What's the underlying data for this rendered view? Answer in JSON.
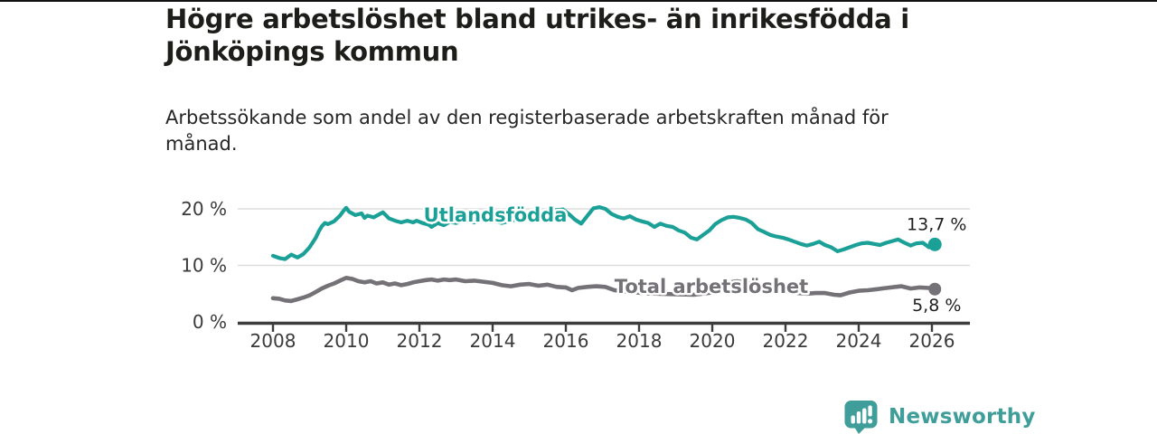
{
  "header": {
    "title": "Högre arbetslöshet bland utrikes- än inrikesfödda i\nJönköpings kommun",
    "subtitle": "Arbetssökande som andel av den registerbaserade arbetskraften månad för\nmånad."
  },
  "colors": {
    "accent_teal": "#1aa096",
    "series_gray": "#747277",
    "axis": "#3c3c3c",
    "gridline": "#dddddd",
    "brand_teal": "#3f9e99"
  },
  "chart_data": {
    "type": "line",
    "title": "Högre arbetslöshet bland utrikes- än inrikesfödda i Jönköpings kommun",
    "subtitle": "Arbetssökande som andel av den registerbaserade arbetskraften månad för månad.",
    "xlabel": "",
    "ylabel": "",
    "x_range": [
      2007.05,
      2027.05
    ],
    "ylim": [
      0,
      21.5
    ],
    "grid": "horizontal",
    "legend_position": "inline-labels",
    "x_axis": {
      "tick_values": [
        2008,
        2010,
        2012,
        2014,
        2016,
        2018,
        2020,
        2022,
        2024,
        2026
      ],
      "tick_labels": [
        "2008",
        "2010",
        "2012",
        "2014",
        "2016",
        "2018",
        "2020",
        "2022",
        "2024",
        "2026"
      ]
    },
    "y_axis": {
      "tick_values": [
        0,
        10,
        20
      ],
      "tick_labels": [
        "0 %",
        "10 %",
        "20 %"
      ],
      "gridline_values": [
        10,
        20
      ]
    },
    "series": [
      {
        "name": "Utlandsfödda",
        "color": "#1aa096",
        "end_value": 13.7,
        "end_value_label": "13,7 %",
        "points": [
          [
            2008.0,
            11.7
          ],
          [
            2008.17,
            11.3
          ],
          [
            2008.33,
            11.1
          ],
          [
            2008.5,
            11.9
          ],
          [
            2008.67,
            11.4
          ],
          [
            2008.83,
            12.0
          ],
          [
            2009.0,
            13.2
          ],
          [
            2009.17,
            14.9
          ],
          [
            2009.25,
            16.0
          ],
          [
            2009.33,
            16.9
          ],
          [
            2009.42,
            17.5
          ],
          [
            2009.5,
            17.3
          ],
          [
            2009.67,
            17.8
          ],
          [
            2009.83,
            18.8
          ],
          [
            2009.92,
            19.6
          ],
          [
            2010.0,
            20.2
          ],
          [
            2010.08,
            19.5
          ],
          [
            2010.25,
            18.9
          ],
          [
            2010.42,
            19.2
          ],
          [
            2010.5,
            18.4
          ],
          [
            2010.58,
            18.8
          ],
          [
            2010.75,
            18.5
          ],
          [
            2010.92,
            19.1
          ],
          [
            2011.0,
            19.4
          ],
          [
            2011.08,
            18.9
          ],
          [
            2011.17,
            18.3
          ],
          [
            2011.33,
            17.9
          ],
          [
            2011.5,
            17.6
          ],
          [
            2011.67,
            17.9
          ],
          [
            2011.83,
            17.6
          ],
          [
            2011.92,
            17.9
          ],
          [
            2012.08,
            17.5
          ],
          [
            2012.25,
            17.2
          ],
          [
            2012.33,
            16.8
          ],
          [
            2012.5,
            17.5
          ],
          [
            2012.67,
            17.1
          ],
          [
            2012.83,
            17.7
          ],
          [
            2013.0,
            17.5
          ],
          [
            2013.25,
            17.9
          ],
          [
            2013.5,
            17.6
          ],
          [
            2013.75,
            18.2
          ],
          [
            2014.0,
            17.9
          ],
          [
            2014.25,
            17.5
          ],
          [
            2014.5,
            17.9
          ],
          [
            2014.75,
            18.2
          ],
          [
            2015.0,
            18.5
          ],
          [
            2015.25,
            18.9
          ],
          [
            2015.5,
            19.4
          ],
          [
            2015.75,
            19.8
          ],
          [
            2015.92,
            19.9
          ],
          [
            2016.08,
            19.1
          ],
          [
            2016.25,
            18.1
          ],
          [
            2016.42,
            17.4
          ],
          [
            2016.58,
            18.7
          ],
          [
            2016.75,
            20.1
          ],
          [
            2016.92,
            20.3
          ],
          [
            2017.08,
            20.0
          ],
          [
            2017.25,
            19.1
          ],
          [
            2017.42,
            18.6
          ],
          [
            2017.58,
            18.3
          ],
          [
            2017.75,
            18.7
          ],
          [
            2017.92,
            18.1
          ],
          [
            2018.08,
            17.8
          ],
          [
            2018.25,
            17.5
          ],
          [
            2018.42,
            16.8
          ],
          [
            2018.58,
            17.4
          ],
          [
            2018.75,
            17.0
          ],
          [
            2018.92,
            16.8
          ],
          [
            2019.08,
            16.2
          ],
          [
            2019.25,
            15.8
          ],
          [
            2019.42,
            14.9
          ],
          [
            2019.58,
            14.6
          ],
          [
            2019.75,
            15.4
          ],
          [
            2019.92,
            16.2
          ],
          [
            2020.08,
            17.3
          ],
          [
            2020.25,
            18.0
          ],
          [
            2020.42,
            18.5
          ],
          [
            2020.58,
            18.6
          ],
          [
            2020.75,
            18.4
          ],
          [
            2020.92,
            18.1
          ],
          [
            2021.08,
            17.5
          ],
          [
            2021.25,
            16.4
          ],
          [
            2021.42,
            15.9
          ],
          [
            2021.58,
            15.4
          ],
          [
            2021.75,
            15.1
          ],
          [
            2021.92,
            14.9
          ],
          [
            2022.08,
            14.6
          ],
          [
            2022.25,
            14.2
          ],
          [
            2022.42,
            13.8
          ],
          [
            2022.58,
            13.5
          ],
          [
            2022.75,
            13.8
          ],
          [
            2022.92,
            14.2
          ],
          [
            2023.08,
            13.6
          ],
          [
            2023.25,
            13.2
          ],
          [
            2023.42,
            12.5
          ],
          [
            2023.58,
            12.8
          ],
          [
            2023.75,
            13.2
          ],
          [
            2023.92,
            13.6
          ],
          [
            2024.08,
            13.9
          ],
          [
            2024.25,
            14.0
          ],
          [
            2024.42,
            13.8
          ],
          [
            2024.58,
            13.6
          ],
          [
            2024.75,
            14.0
          ],
          [
            2024.92,
            14.3
          ],
          [
            2025.08,
            14.6
          ],
          [
            2025.25,
            14.0
          ],
          [
            2025.42,
            13.5
          ],
          [
            2025.58,
            13.9
          ],
          [
            2025.75,
            14.0
          ],
          [
            2025.92,
            13.2
          ],
          [
            2026.08,
            13.7
          ]
        ]
      },
      {
        "name": "Total arbetslöshet",
        "color": "#747277",
        "end_value": 5.8,
        "end_value_label": "5,8 %",
        "points": [
          [
            2008.0,
            4.2
          ],
          [
            2008.17,
            4.1
          ],
          [
            2008.33,
            3.8
          ],
          [
            2008.5,
            3.7
          ],
          [
            2008.67,
            4.0
          ],
          [
            2008.83,
            4.3
          ],
          [
            2009.0,
            4.7
          ],
          [
            2009.17,
            5.3
          ],
          [
            2009.33,
            5.9
          ],
          [
            2009.5,
            6.4
          ],
          [
            2009.67,
            6.8
          ],
          [
            2009.83,
            7.3
          ],
          [
            2010.0,
            7.8
          ],
          [
            2010.17,
            7.6
          ],
          [
            2010.33,
            7.2
          ],
          [
            2010.5,
            7.0
          ],
          [
            2010.67,
            7.2
          ],
          [
            2010.83,
            6.8
          ],
          [
            2011.0,
            7.0
          ],
          [
            2011.17,
            6.6
          ],
          [
            2011.33,
            6.8
          ],
          [
            2011.5,
            6.5
          ],
          [
            2011.67,
            6.7
          ],
          [
            2011.83,
            7.0
          ],
          [
            2012.0,
            7.2
          ],
          [
            2012.17,
            7.4
          ],
          [
            2012.33,
            7.5
          ],
          [
            2012.5,
            7.3
          ],
          [
            2012.67,
            7.5
          ],
          [
            2012.83,
            7.4
          ],
          [
            2013.0,
            7.5
          ],
          [
            2013.25,
            7.2
          ],
          [
            2013.5,
            7.3
          ],
          [
            2013.75,
            7.1
          ],
          [
            2014.0,
            6.9
          ],
          [
            2014.25,
            6.5
          ],
          [
            2014.5,
            6.3
          ],
          [
            2014.75,
            6.6
          ],
          [
            2015.0,
            6.7
          ],
          [
            2015.25,
            6.4
          ],
          [
            2015.5,
            6.6
          ],
          [
            2015.75,
            6.2
          ],
          [
            2016.0,
            6.1
          ],
          [
            2016.17,
            5.6
          ],
          [
            2016.33,
            6.0
          ],
          [
            2016.58,
            6.2
          ],
          [
            2016.83,
            6.3
          ],
          [
            2017.08,
            6.2
          ],
          [
            2017.33,
            5.6
          ],
          [
            2017.58,
            5.4
          ],
          [
            2017.83,
            5.3
          ],
          [
            2018.08,
            5.1
          ],
          [
            2018.5,
            5.0
          ],
          [
            2019.0,
            4.9
          ],
          [
            2019.5,
            4.8
          ],
          [
            2020.0,
            5.2
          ],
          [
            2020.33,
            6.8
          ],
          [
            2020.67,
            7.2
          ],
          [
            2021.0,
            6.8
          ],
          [
            2021.33,
            6.2
          ],
          [
            2021.67,
            5.7
          ],
          [
            2022.0,
            5.4
          ],
          [
            2022.33,
            5.1
          ],
          [
            2022.58,
            5.0
          ],
          [
            2022.83,
            5.1
          ],
          [
            2023.08,
            5.1
          ],
          [
            2023.33,
            4.8
          ],
          [
            2023.5,
            4.7
          ],
          [
            2023.75,
            5.2
          ],
          [
            2024.0,
            5.5
          ],
          [
            2024.25,
            5.6
          ],
          [
            2024.5,
            5.8
          ],
          [
            2024.75,
            6.0
          ],
          [
            2025.0,
            6.2
          ],
          [
            2025.17,
            6.3
          ],
          [
            2025.42,
            5.9
          ],
          [
            2025.67,
            6.1
          ],
          [
            2025.92,
            6.0
          ],
          [
            2026.08,
            5.8
          ]
        ]
      }
    ]
  },
  "branding": {
    "name": "Newsworthy",
    "logo_icon": "bar-chart-speech-bubble"
  }
}
